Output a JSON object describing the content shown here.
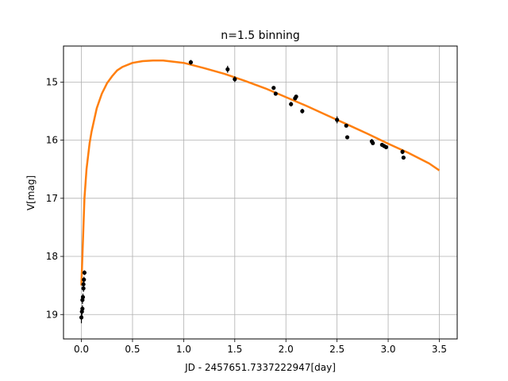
{
  "chart_data": {
    "type": "scatter",
    "title": "n=1.5 binning",
    "xlabel": "JD - 2457651.7337222947[day]",
    "ylabel": "V[mag]",
    "xlim": [
      -0.175,
      3.675
    ],
    "ylim": [
      19.42,
      14.38
    ],
    "y_inverted": true,
    "grid": true,
    "xticks": [
      0.0,
      0.5,
      1.0,
      1.5,
      2.0,
      2.5,
      3.0,
      3.5
    ],
    "xtick_labels": [
      "0.0",
      "0.5",
      "1.0",
      "1.5",
      "2.0",
      "2.5",
      "3.0",
      "3.5"
    ],
    "yticks": [
      15,
      16,
      17,
      18,
      19
    ],
    "ytick_labels": [
      "15",
      "16",
      "17",
      "18",
      "19"
    ],
    "colors": {
      "points": "#000000",
      "model": "#ff7f0e",
      "grid": "#b0b0b0"
    },
    "series": [
      {
        "kind": "errorbar",
        "points": [
          {
            "x": 0.0,
            "y": 19.05,
            "err": 0.1
          },
          {
            "x": 0.005,
            "y": 18.95,
            "err": 0.08
          },
          {
            "x": 0.01,
            "y": 18.9,
            "err": 0.06
          },
          {
            "x": 0.01,
            "y": 18.75,
            "err": 0.07
          },
          {
            "x": 0.015,
            "y": 18.7,
            "err": 0.06
          },
          {
            "x": 0.02,
            "y": 18.55,
            "err": 0.06
          },
          {
            "x": 0.02,
            "y": 18.48,
            "err": 0.05
          },
          {
            "x": 0.025,
            "y": 18.4,
            "err": 0.05
          },
          {
            "x": 0.03,
            "y": 18.28,
            "err": 0.04
          },
          {
            "x": 1.07,
            "y": 14.66,
            "err": 0.04
          },
          {
            "x": 1.43,
            "y": 14.78,
            "err": 0.06
          },
          {
            "x": 1.5,
            "y": 14.95,
            "err": 0.05
          },
          {
            "x": 1.88,
            "y": 15.1,
            "err": 0.03
          },
          {
            "x": 1.9,
            "y": 15.2,
            "err": 0.03
          },
          {
            "x": 2.05,
            "y": 15.38,
            "err": 0.04
          },
          {
            "x": 2.09,
            "y": 15.28,
            "err": 0.03
          },
          {
            "x": 2.1,
            "y": 15.25,
            "err": 0.03
          },
          {
            "x": 2.16,
            "y": 15.5,
            "err": 0.04
          },
          {
            "x": 2.5,
            "y": 15.65,
            "err": 0.06
          },
          {
            "x": 2.59,
            "y": 15.75,
            "err": 0.03
          },
          {
            "x": 2.6,
            "y": 15.95,
            "err": 0.03
          },
          {
            "x": 2.84,
            "y": 16.02,
            "err": 0.04
          },
          {
            "x": 2.85,
            "y": 16.05,
            "err": 0.03
          },
          {
            "x": 2.94,
            "y": 16.08,
            "err": 0.03
          },
          {
            "x": 2.96,
            "y": 16.1,
            "err": 0.03
          },
          {
            "x": 2.98,
            "y": 16.12,
            "err": 0.03
          },
          {
            "x": 3.14,
            "y": 16.2,
            "err": 0.04
          },
          {
            "x": 3.15,
            "y": 16.3,
            "err": 0.03
          }
        ]
      },
      {
        "kind": "line",
        "x": [
          0.0,
          0.01,
          0.02,
          0.03,
          0.05,
          0.08,
          0.1,
          0.15,
          0.2,
          0.25,
          0.3,
          0.35,
          0.4,
          0.5,
          0.6,
          0.7,
          0.8,
          0.9,
          1.0,
          1.2,
          1.4,
          1.6,
          1.8,
          2.0,
          2.2,
          2.4,
          2.6,
          2.8,
          3.0,
          3.2,
          3.4,
          3.5
        ],
        "y": [
          18.5,
          18.0,
          17.5,
          17.0,
          16.5,
          16.05,
          15.85,
          15.45,
          15.2,
          15.02,
          14.9,
          14.8,
          14.74,
          14.67,
          14.64,
          14.63,
          14.63,
          14.65,
          14.67,
          14.76,
          14.86,
          14.98,
          15.11,
          15.26,
          15.41,
          15.57,
          15.73,
          15.89,
          16.06,
          16.22,
          16.4,
          16.52
        ]
      }
    ]
  }
}
